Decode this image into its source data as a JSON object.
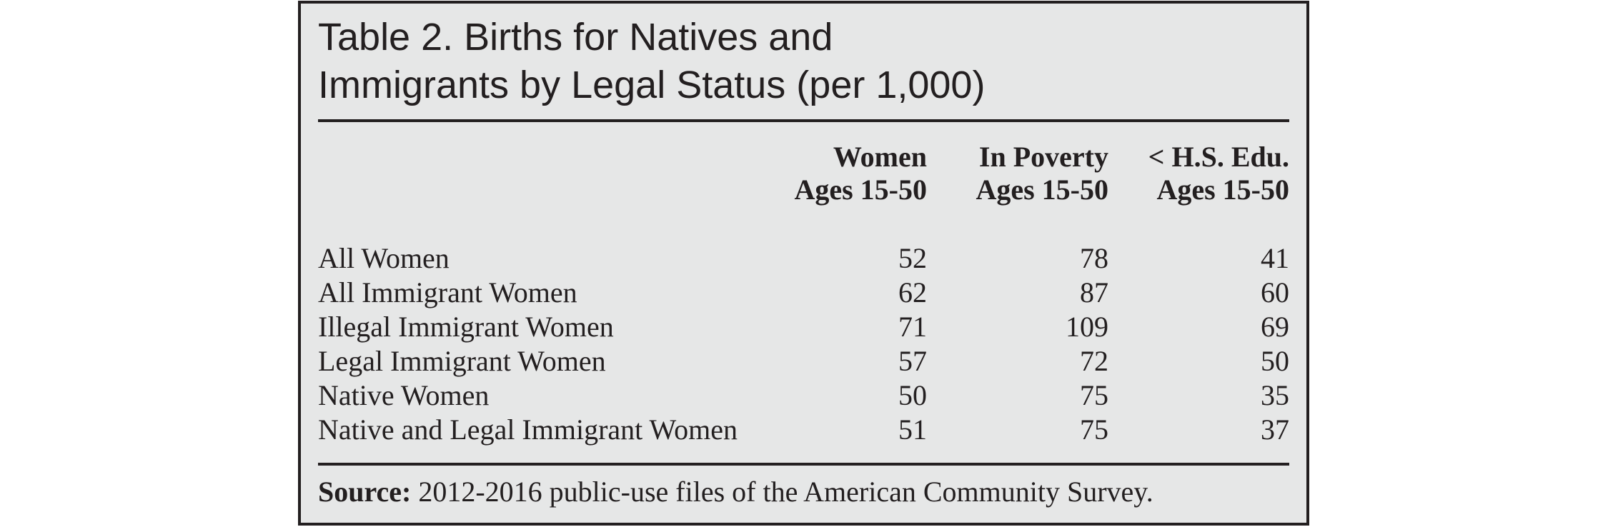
{
  "table": {
    "title": [
      "Table 2. Births for Natives and",
      "Immigrants by Legal Status (per 1,000)"
    ],
    "columns": [
      [
        "Women",
        "Ages 15-50"
      ],
      [
        "In Poverty",
        "Ages 15-50"
      ],
      [
        "< H.S. Edu.",
        "Ages 15-50"
      ]
    ],
    "rows": [
      [
        "All Women",
        52,
        78,
        41
      ],
      [
        "All Immigrant Women",
        62,
        87,
        60
      ],
      [
        "Illegal Immigrant Women",
        71,
        109,
        69
      ],
      [
        "Legal Immigrant Women",
        57,
        72,
        50
      ],
      [
        "Native Women",
        50,
        75,
        35
      ],
      [
        "Native and Legal Immigrant Women",
        51,
        75,
        37
      ]
    ],
    "source_label": "Source:",
    "source_text": "2012-2016 public-use files of the American Community Survey."
  }
}
